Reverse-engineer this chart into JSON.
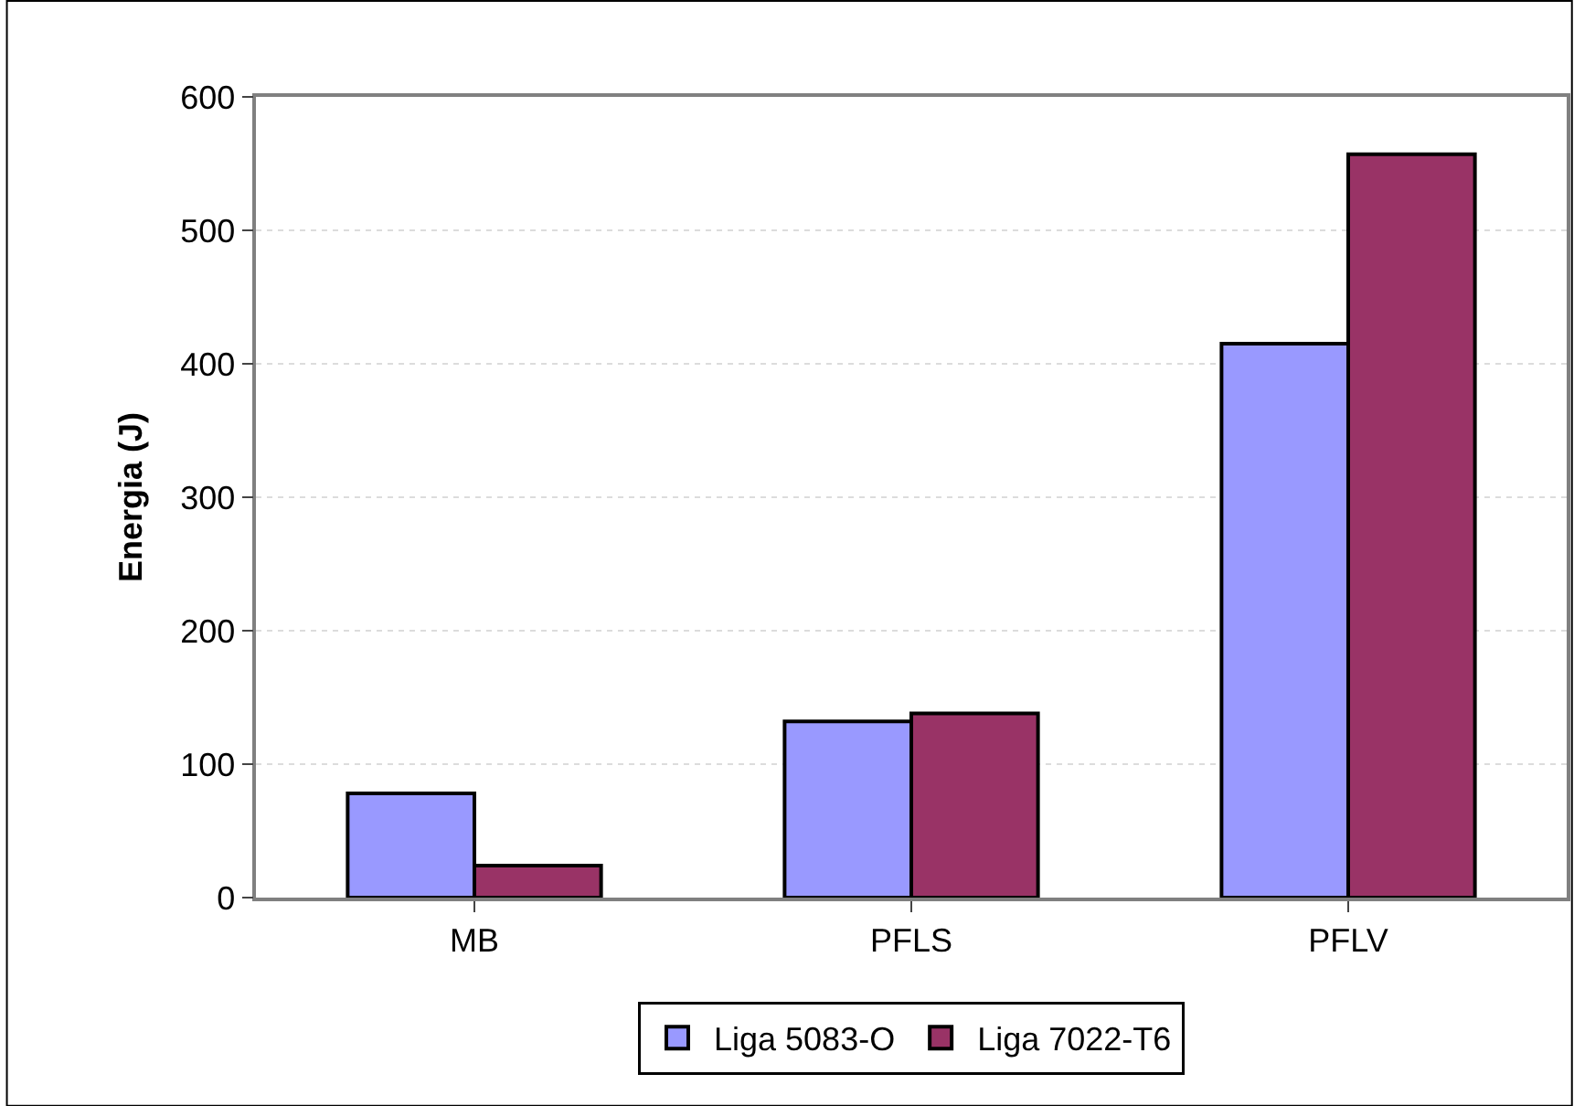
{
  "chart_data": {
    "type": "bar",
    "ylabel": "Energia (J)",
    "categories": [
      "MB",
      "PFLS",
      "PFLV"
    ],
    "series": [
      {
        "name": "Liga 5083-O",
        "color": "#9999ff",
        "values": [
          78,
          132,
          415
        ]
      },
      {
        "name": "Liga 7022-T6",
        "color": "#993366",
        "values": [
          24,
          138,
          557
        ]
      }
    ],
    "ylim": [
      0,
      600
    ],
    "yticks": [
      0,
      100,
      200,
      300,
      400,
      500,
      600
    ],
    "grid": "y",
    "legend": "bottom"
  }
}
